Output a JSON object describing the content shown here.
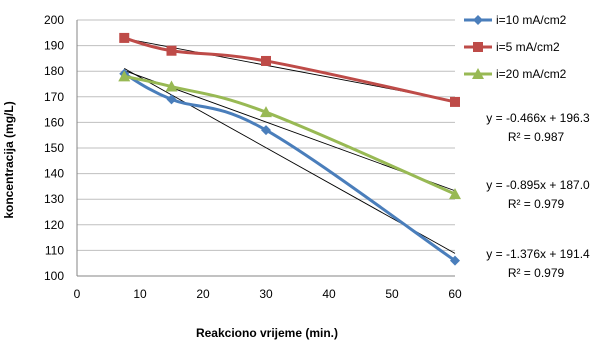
{
  "chart_data": {
    "type": "line",
    "xlabel": "Reakciono vrijeme (min.)",
    "ylabel": "koncentracija  (mg/L)",
    "xlim": [
      0,
      60
    ],
    "ylim": [
      100,
      200
    ],
    "xticks": [
      0,
      10,
      20,
      30,
      40,
      50,
      60
    ],
    "yticks": [
      100,
      110,
      120,
      130,
      140,
      150,
      160,
      170,
      180,
      190,
      200
    ],
    "grid": "horizontal",
    "legend_position": "right",
    "series": [
      {
        "name": "i=10 mA/cm2",
        "color": "#4a7ebb",
        "marker": "diamond",
        "x": [
          7.5,
          15,
          30,
          60
        ],
        "y": [
          179,
          169,
          157,
          106
        ],
        "trendline": {
          "slope": -1.376,
          "intercept": 191.4,
          "equation": "y = -1.376x + 191.4",
          "r2": "R² = 0.979"
        }
      },
      {
        "name": "i=5 mA/cm2",
        "color": "#be4b48",
        "marker": "square",
        "x": [
          7.5,
          15,
          30,
          60
        ],
        "y": [
          193,
          188,
          184,
          168
        ],
        "trendline": {
          "slope": -0.466,
          "intercept": 196.3,
          "equation": "y = -0.466x + 196.3",
          "r2": "R² = 0.987"
        }
      },
      {
        "name": "i=20 mA/cm2",
        "color": "#98b954",
        "marker": "triangle",
        "x": [
          7.5,
          15,
          30,
          60
        ],
        "y": [
          178,
          174,
          164,
          132
        ],
        "trendline": {
          "slope": -0.895,
          "intercept": 187.0,
          "equation": "y = -0.895x + 187.0",
          "r2": "R² = 0.979"
        }
      }
    ],
    "equation_order": [
      1,
      2,
      0
    ]
  }
}
